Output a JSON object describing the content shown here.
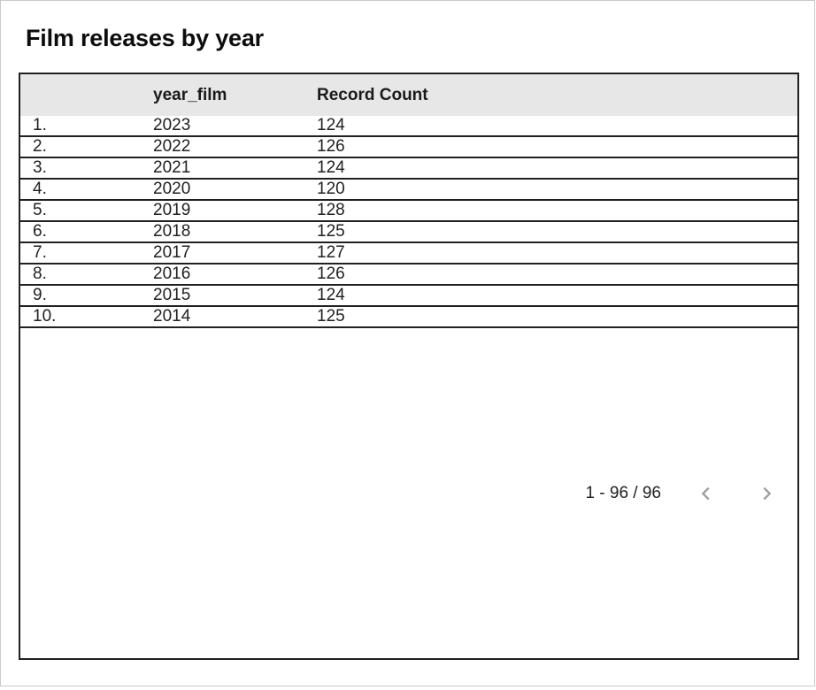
{
  "card": {
    "title": "Film releases by year"
  },
  "table": {
    "header": {
      "index_label": "",
      "year_label": "year_film",
      "count_label": "Record Count"
    },
    "rows": [
      {
        "index": "1.",
        "year": "2023",
        "count": "124"
      },
      {
        "index": "2.",
        "year": "2022",
        "count": "126"
      },
      {
        "index": "3.",
        "year": "2021",
        "count": "124"
      },
      {
        "index": "4.",
        "year": "2020",
        "count": "120"
      },
      {
        "index": "5.",
        "year": "2019",
        "count": "128"
      },
      {
        "index": "6.",
        "year": "2018",
        "count": "125"
      },
      {
        "index": "7.",
        "year": "2017",
        "count": "127"
      },
      {
        "index": "8.",
        "year": "2016",
        "count": "126"
      },
      {
        "index": "9.",
        "year": "2015",
        "count": "124"
      },
      {
        "index": "10.",
        "year": "2014",
        "count": "125"
      }
    ]
  },
  "pagination": {
    "range_label": "1 - 96 / 96",
    "prev_icon": "chevron-left",
    "next_icon": "chevron-right"
  },
  "colors": {
    "header_bg": "#e7e7e7",
    "table_border": "#202020",
    "card_border": "#c9c9c9",
    "text": "#212121",
    "chevron": "#9e9e9e"
  },
  "chart_data": {
    "type": "table",
    "title": "Film releases by year",
    "columns": [
      "year_film",
      "Record Count"
    ],
    "rows": [
      [
        2023,
        124
      ],
      [
        2022,
        126
      ],
      [
        2021,
        124
      ],
      [
        2020,
        120
      ],
      [
        2019,
        128
      ],
      [
        2018,
        125
      ],
      [
        2017,
        127
      ],
      [
        2016,
        126
      ],
      [
        2015,
        124
      ],
      [
        2014,
        125
      ]
    ],
    "visible_range": "1 - 96 / 96",
    "total_records": 96
  }
}
